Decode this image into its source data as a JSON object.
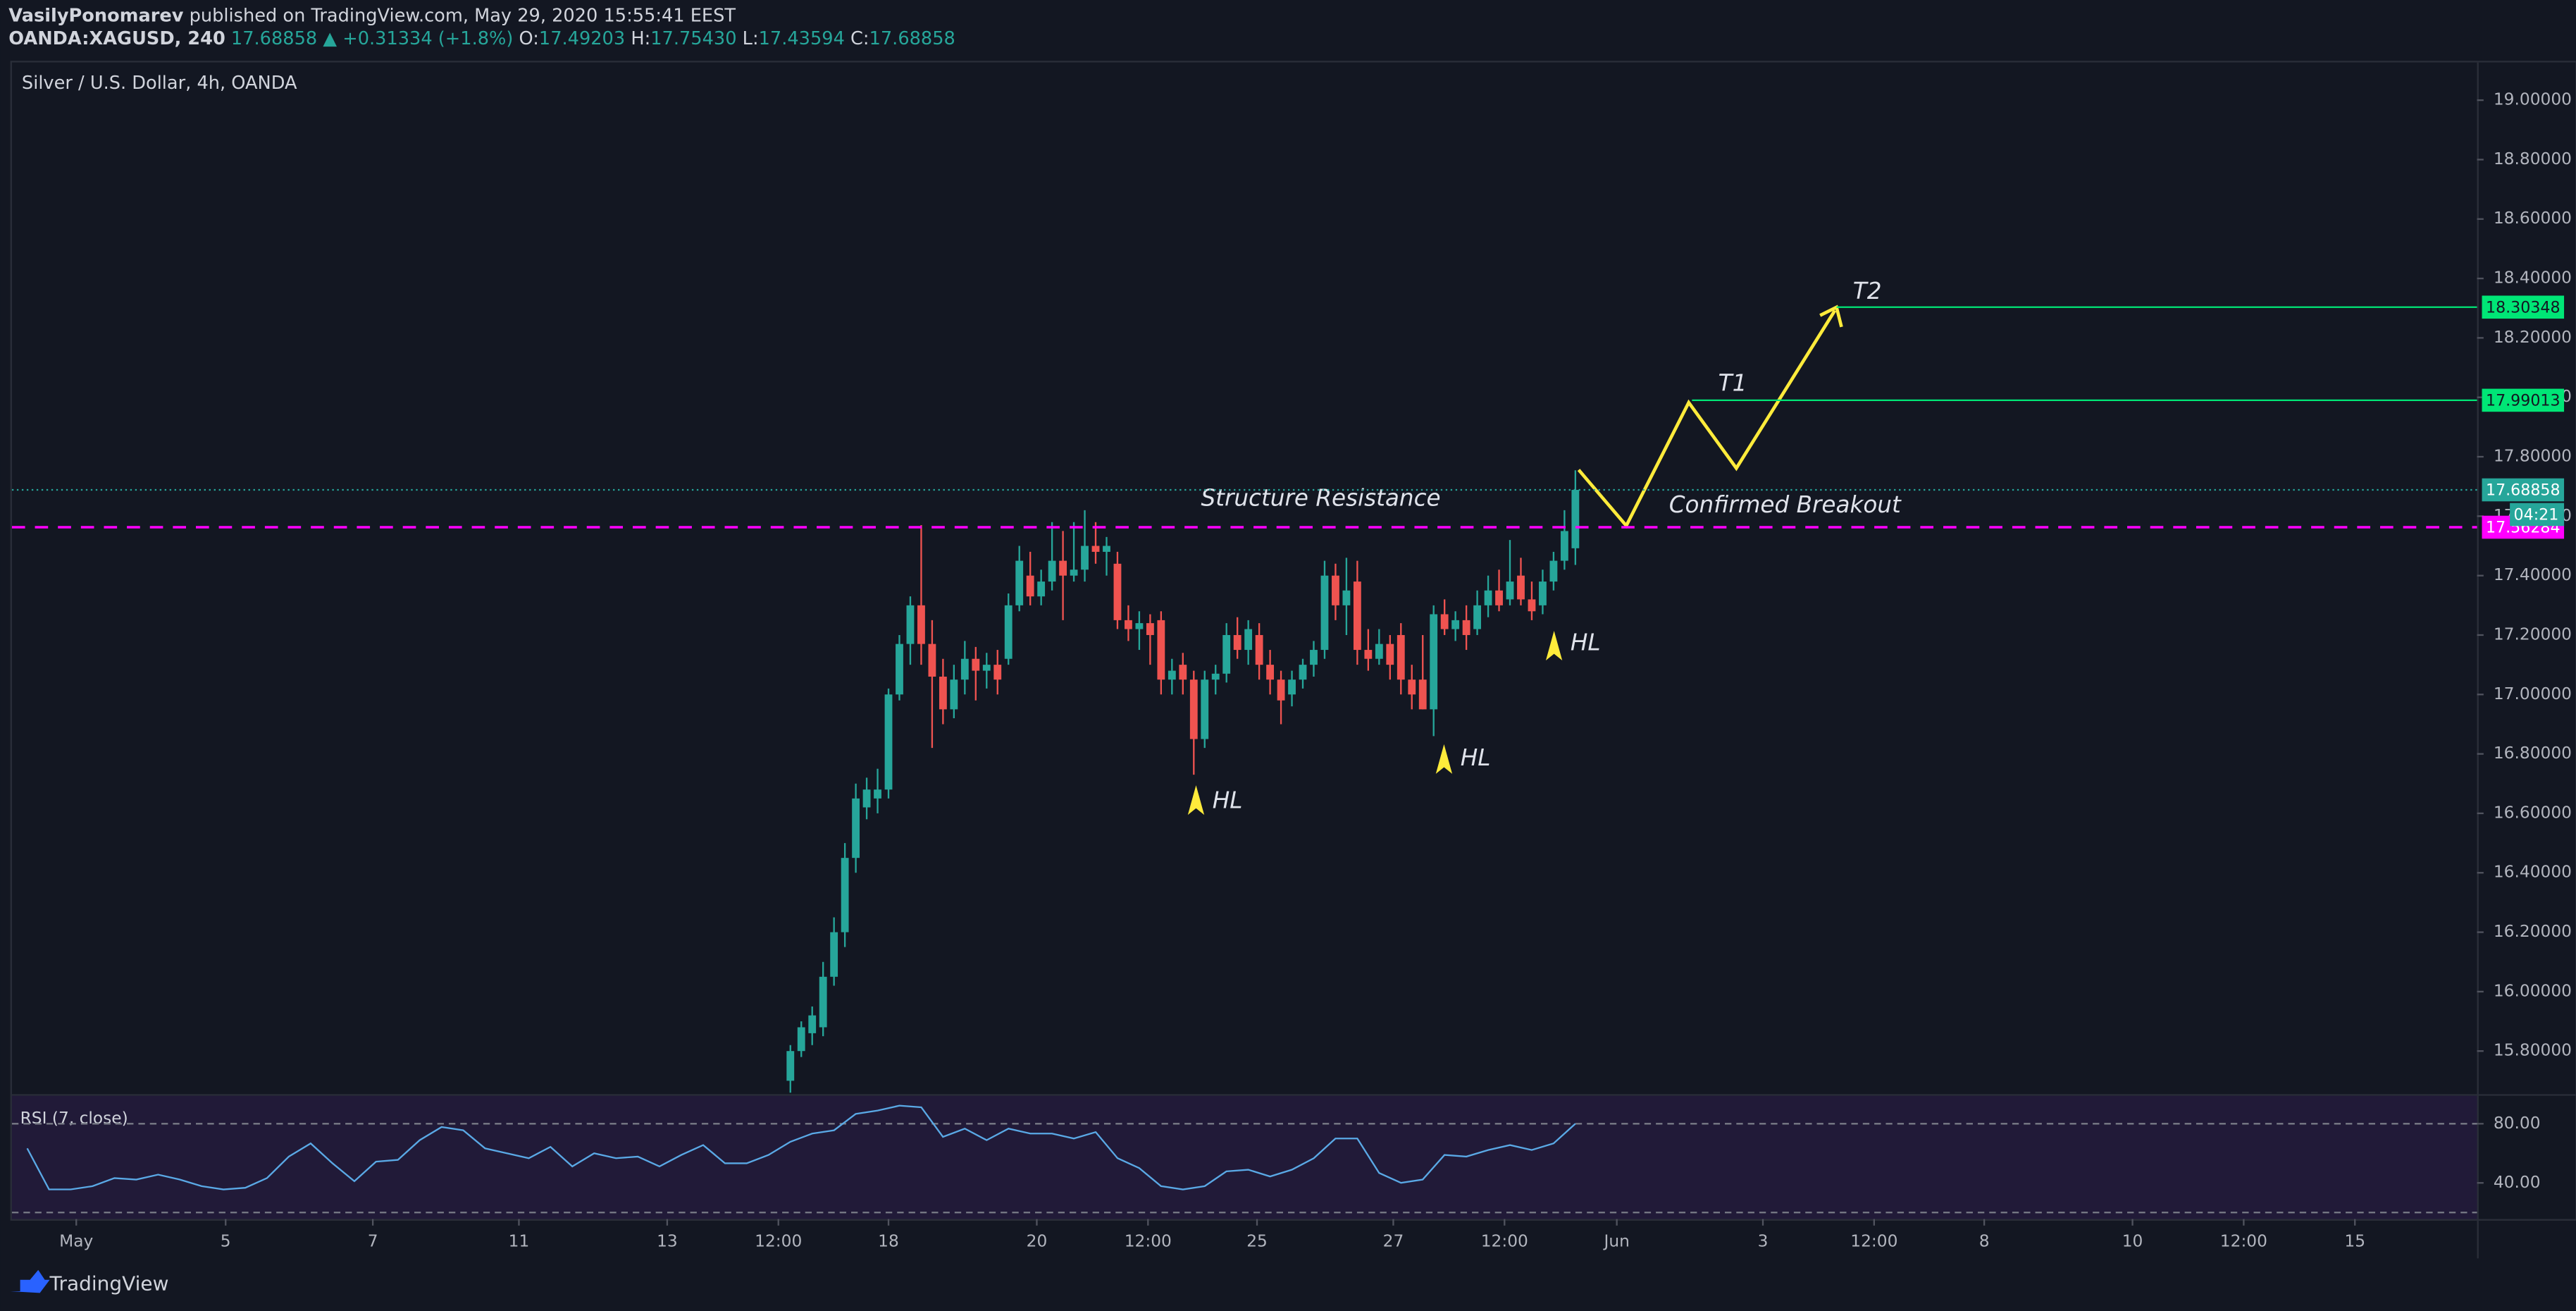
{
  "header": {
    "author": "VasilyPonomarev",
    "published": "published on TradingView.com, May 29, 2020 15:55:41 EEST",
    "symbol": "OANDA:XAGUSD, 240",
    "last": "17.68858",
    "change": "▲ +0.31334 (+1.8%)",
    "ohlc": [
      {
        "key": "O:",
        "value": "17.49203"
      },
      {
        "key": "H:",
        "value": "17.75430"
      },
      {
        "key": "L:",
        "value": "17.43594"
      },
      {
        "key": "C:",
        "value": "17.68858"
      }
    ]
  },
  "annotations": {
    "structure": "Structure Resistance",
    "breakout": "Confirmed Breakout",
    "t1": "T1",
    "t2": "T2",
    "hl": [
      "HL",
      "HL",
      "HL"
    ]
  },
  "footer": {
    "logo": "TradingView"
  },
  "chart_data": {
    "type": "candlestick",
    "title": "Silver / U.S. Dollar, 4h, OANDA",
    "up_color": "#26a69a",
    "down_color": "#ef5350",
    "x": [
      0,
      1,
      2,
      3,
      4,
      5,
      6,
      7,
      8,
      9,
      10,
      11,
      12,
      13,
      14,
      15,
      16,
      17,
      18,
      19,
      20,
      21,
      22,
      23,
      24,
      25,
      26,
      27,
      28,
      29,
      30,
      31,
      32,
      33,
      34,
      35,
      36,
      37,
      38,
      39,
      40,
      41,
      42,
      43,
      44,
      45,
      46,
      47,
      48,
      49,
      50,
      51,
      52,
      53,
      54,
      55,
      56,
      57,
      58,
      59,
      60,
      61,
      62,
      63,
      64,
      65,
      66,
      67,
      68,
      69,
      70,
      71,
      72
    ],
    "open": [
      15.7,
      15.8,
      15.86,
      15.88,
      16.05,
      16.2,
      16.45,
      16.62,
      16.65,
      16.68,
      17.0,
      17.17,
      17.3,
      17.17,
      17.06,
      16.95,
      17.05,
      17.12,
      17.08,
      17.1,
      17.12,
      17.3,
      17.4,
      17.33,
      17.38,
      17.45,
      17.4,
      17.42,
      17.5,
      17.48,
      17.44,
      17.25,
      17.22,
      17.24,
      17.25,
      17.05,
      17.1,
      17.05,
      16.85,
      17.05,
      17.07,
      17.2,
      17.15,
      17.2,
      17.1,
      17.05,
      17.0,
      17.05,
      17.1,
      17.15,
      17.4,
      17.3,
      17.38,
      17.15,
      17.12,
      17.17,
      17.2,
      17.05,
      17.05,
      16.95,
      17.27,
      17.22,
      17.25,
      17.22,
      17.3,
      17.35,
      17.32,
      17.4,
      17.32,
      17.3,
      17.38,
      17.45,
      17.49203
    ],
    "high": [
      15.82,
      15.9,
      15.95,
      16.1,
      16.25,
      16.5,
      16.7,
      16.72,
      16.75,
      17.02,
      17.2,
      17.33,
      17.57,
      17.25,
      17.12,
      17.1,
      17.18,
      17.16,
      17.14,
      17.15,
      17.34,
      17.5,
      17.48,
      17.42,
      17.58,
      17.55,
      17.58,
      17.62,
      17.58,
      17.53,
      17.48,
      17.3,
      17.28,
      17.27,
      17.28,
      17.12,
      17.14,
      17.08,
      17.08,
      17.1,
      17.24,
      17.26,
      17.25,
      17.24,
      17.15,
      17.08,
      17.08,
      17.12,
      17.18,
      17.45,
      17.44,
      17.46,
      17.45,
      17.22,
      17.22,
      17.2,
      17.24,
      17.1,
      17.2,
      17.3,
      17.32,
      17.28,
      17.3,
      17.35,
      17.4,
      17.42,
      17.52,
      17.46,
      17.38,
      17.42,
      17.48,
      17.62,
      17.7543
    ],
    "low": [
      15.66,
      15.78,
      15.82,
      15.85,
      16.02,
      16.15,
      16.4,
      16.58,
      16.6,
      16.65,
      16.98,
      17.1,
      17.1,
      16.82,
      16.9,
      16.92,
      17.0,
      16.98,
      17.02,
      17.0,
      17.1,
      17.28,
      17.3,
      17.3,
      17.35,
      17.25,
      17.38,
      17.38,
      17.44,
      17.4,
      17.22,
      17.18,
      17.15,
      17.1,
      17.0,
      17.0,
      17.0,
      16.73,
      16.82,
      17.0,
      17.04,
      17.12,
      17.1,
      17.05,
      17.0,
      16.9,
      16.96,
      17.02,
      17.06,
      17.12,
      17.25,
      17.2,
      17.1,
      17.08,
      17.1,
      17.05,
      17.0,
      16.95,
      16.95,
      16.86,
      17.2,
      17.18,
      17.15,
      17.2,
      17.26,
      17.28,
      17.3,
      17.3,
      17.25,
      17.27,
      17.35,
      17.42,
      17.43594
    ],
    "close": [
      15.8,
      15.88,
      15.92,
      16.05,
      16.2,
      16.45,
      16.65,
      16.68,
      16.68,
      17.0,
      17.17,
      17.3,
      17.17,
      17.06,
      16.95,
      17.05,
      17.12,
      17.08,
      17.1,
      17.05,
      17.3,
      17.45,
      17.33,
      17.38,
      17.45,
      17.4,
      17.42,
      17.5,
      17.48,
      17.5,
      17.25,
      17.22,
      17.24,
      17.2,
      17.05,
      17.08,
      17.05,
      16.85,
      17.05,
      17.07,
      17.2,
      17.15,
      17.22,
      17.1,
      17.05,
      16.98,
      17.05,
      17.1,
      17.15,
      17.4,
      17.3,
      17.35,
      17.15,
      17.12,
      17.17,
      17.1,
      17.05,
      17.0,
      16.95,
      17.27,
      17.22,
      17.25,
      17.2,
      17.3,
      17.35,
      17.3,
      17.38,
      17.32,
      17.28,
      17.38,
      17.45,
      17.55,
      17.68858
    ],
    "xlim": [
      -71.4,
      154.7
    ],
    "xticks": [
      {
        "value": -65.5,
        "label": "May"
      },
      {
        "value": -51.8,
        "label": "5"
      },
      {
        "value": -38.3,
        "label": "7"
      },
      {
        "value": -24.9,
        "label": "11"
      },
      {
        "value": -11.3,
        "label": "13"
      },
      {
        "value": -1.1,
        "label": "12:00"
      },
      {
        "value": 9,
        "label": "18"
      },
      {
        "value": 22.6,
        "label": "20"
      },
      {
        "value": 32.8,
        "label": "12:00"
      },
      {
        "value": 42.8,
        "label": "25"
      },
      {
        "value": 55.3,
        "label": "27"
      },
      {
        "value": 65.5,
        "label": "12:00"
      },
      {
        "value": 75.8,
        "label": "Jun"
      },
      {
        "value": 89.2,
        "label": "3"
      },
      {
        "value": 99.4,
        "label": "12:00"
      },
      {
        "value": 109.5,
        "label": "8"
      },
      {
        "value": 123.1,
        "label": "10"
      },
      {
        "value": 133.3,
        "label": "12:00"
      },
      {
        "value": 143.5,
        "label": "15"
      }
    ],
    "ylim": [
      15.655,
      19.127
    ],
    "yticks": [
      {
        "value": 19.0,
        "label": "19.00000"
      },
      {
        "value": 18.8,
        "label": "18.80000"
      },
      {
        "value": 18.6,
        "label": "18.60000"
      },
      {
        "value": 18.4,
        "label": "18.40000"
      },
      {
        "value": 18.2,
        "label": "18.20000"
      },
      {
        "value": 18.0,
        "label": "18.00000"
      },
      {
        "value": 17.8,
        "label": "17.80000"
      },
      {
        "value": 17.6,
        "label": "17.60000"
      },
      {
        "value": 17.4,
        "label": "17.40000"
      },
      {
        "value": 17.2,
        "label": "17.20000"
      },
      {
        "value": 17.0,
        "label": "17.00000"
      },
      {
        "value": 16.8,
        "label": "16.80000"
      },
      {
        "value": 16.6,
        "label": "16.60000"
      },
      {
        "value": 16.4,
        "label": "16.40000"
      },
      {
        "value": 16.2,
        "label": "16.20000"
      },
      {
        "value": 16.0,
        "label": "16.00000"
      },
      {
        "value": 15.8,
        "label": "15.80000"
      }
    ],
    "price_lines": [
      {
        "value": 18.30348,
        "color": "#00e676",
        "style": "solid"
      },
      {
        "value": 17.99013,
        "color": "#00e676",
        "style": "solid"
      },
      {
        "value": 17.68858,
        "color": "#26a69a",
        "style": "dotted"
      },
      {
        "value": 17.56284,
        "color": "#ff00ff",
        "style": "dashed"
      }
    ],
    "countdown": "04:21",
    "rsi": {
      "label": "RSI (7, close)",
      "color": "#5aa9e6",
      "band": [
        20,
        80
      ],
      "ylim": [
        15.6,
        100
      ],
      "yticks": [
        {
          "value": 80,
          "label": "80.00"
        },
        {
          "value": 40,
          "label": "40.00"
        }
      ],
      "x": [
        -70,
        -68,
        -66,
        -64,
        -62,
        -60,
        -58,
        -56,
        -54,
        -52,
        -50,
        -48,
        -46,
        -44,
        -42,
        -40,
        -38,
        -36,
        -34,
        -32,
        -30,
        -28,
        -26,
        -24,
        -22,
        -20,
        -18,
        -16,
        -14,
        -12,
        -10,
        -8,
        -6,
        -4,
        -2,
        0,
        2,
        4,
        6,
        8,
        10,
        12,
        14,
        16,
        18,
        20,
        22,
        24,
        26,
        28,
        30,
        32,
        34,
        36,
        38,
        40,
        42,
        44,
        46,
        48,
        50,
        52,
        54,
        56,
        58,
        60,
        62,
        64,
        66,
        68,
        70,
        72
      ],
      "values": [
        63.3,
        35.6,
        35.6,
        37.8,
        43.3,
        42.2,
        45.6,
        42.2,
        37.8,
        35.6,
        36.7,
        43.3,
        57.8,
        66.7,
        53.3,
        41.1,
        54.4,
        55.6,
        68.9,
        77.8,
        75.6,
        63.3,
        60,
        56.7,
        64.4,
        51.1,
        60,
        56.7,
        57.8,
        51.1,
        58.9,
        65.6,
        53.3,
        53.3,
        58.9,
        67.8,
        73.3,
        75.6,
        86.7,
        88.9,
        92.2,
        91.1,
        71.1,
        76.7,
        68.9,
        76.7,
        73.3,
        73.3,
        70,
        74.4,
        56.7,
        50,
        37.8,
        35.6,
        37.8,
        47.8,
        48.9,
        44.4,
        48.9,
        56.7,
        70,
        70,
        46.7,
        40,
        42.2,
        58.9,
        57.8,
        62.2,
        65.6,
        62.2,
        66.7,
        80
      ]
    }
  }
}
